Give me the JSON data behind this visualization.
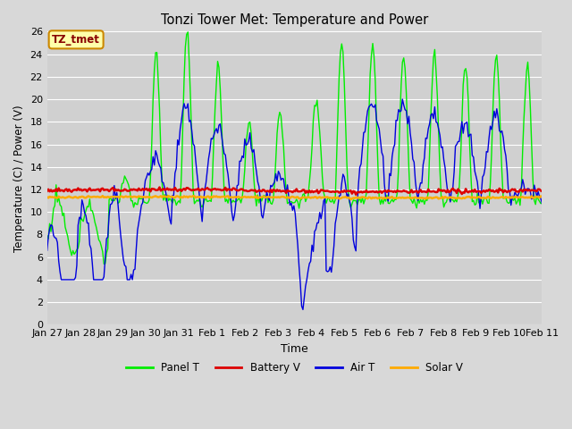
{
  "title": "Tonzi Tower Met: Temperature and Power",
  "xlabel": "Time",
  "ylabel": "Temperature (C) / Power (V)",
  "ylim": [
    0,
    26
  ],
  "yticks": [
    0,
    2,
    4,
    6,
    8,
    10,
    12,
    14,
    16,
    18,
    20,
    22,
    24,
    26
  ],
  "x_labels": [
    "Jan 27",
    "Jan 28",
    "Jan 29",
    "Jan 30",
    "Jan 31",
    "Feb 1",
    "Feb 2",
    "Feb 3",
    "Feb 4",
    "Feb 5",
    "Feb 6",
    "Feb 7",
    "Feb 8",
    "Feb 9",
    "Feb 10",
    "Feb 11"
  ],
  "bg_color": "#d8d8d8",
  "plot_bg_color": "#d0d0d0",
  "grid_color": "#ffffff",
  "annotation_box_bg": "#ffffaa",
  "annotation_box_border": "#cc8800",
  "annotation_text": "TZ_tmet",
  "annotation_text_color": "#880000",
  "colors": {
    "panel_t": "#00ee00",
    "battery_v": "#dd0000",
    "air_t": "#0000dd",
    "solar_v": "#ffaa00"
  },
  "legend_labels": [
    "Panel T",
    "Battery V",
    "Air T",
    "Solar V"
  ],
  "battery_v_level": 11.9,
  "solar_v_level": 11.3
}
